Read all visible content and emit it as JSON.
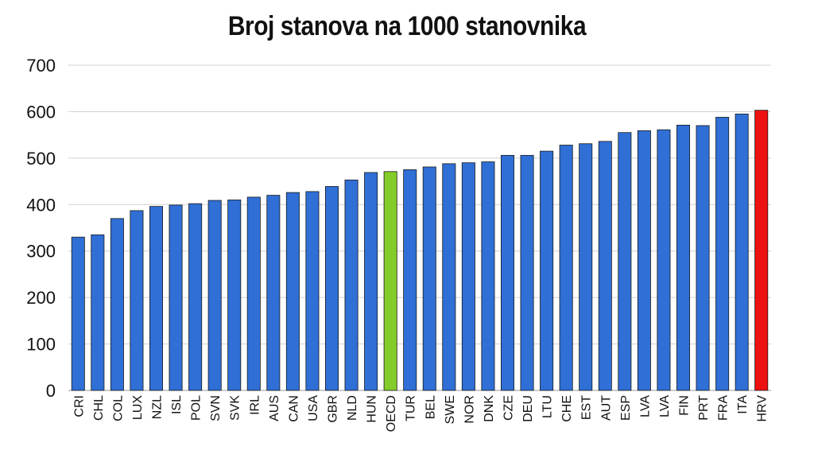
{
  "chart_data": {
    "type": "bar",
    "title": "Broj stanova na 1000 stanovnika",
    "xlabel": "",
    "ylabel": "",
    "ylim": [
      0,
      700
    ],
    "yticks": [
      0,
      100,
      200,
      300,
      400,
      500,
      600,
      700
    ],
    "grid": true,
    "legend": "none",
    "categories": [
      "CRI",
      "CHL",
      "COL",
      "LUX",
      "NZL",
      "ISL",
      "POL",
      "SVN",
      "SVK",
      "IRL",
      "AUS",
      "CAN",
      "USA",
      "GBR",
      "NLD",
      "HUN",
      "OECD",
      "TUR",
      "BEL",
      "SWE",
      "NOR",
      "DNK",
      "CZE",
      "DEU",
      "LTU",
      "CHE",
      "EST",
      "AUT",
      "ESP",
      "LVA",
      "LVA",
      "FIN",
      "PRT",
      "FRA",
      "ITA",
      "HRV"
    ],
    "values": [
      330,
      335,
      370,
      387,
      396,
      399,
      402,
      409,
      410,
      416,
      420,
      426,
      428,
      439,
      453,
      469,
      471,
      475,
      481,
      488,
      490,
      492,
      506,
      506,
      515,
      528,
      531,
      536,
      555,
      559,
      561,
      571,
      570,
      588,
      595,
      603
    ],
    "colors": {
      "default": "#2f6fd6",
      "highlight_oecd": "#84cc29",
      "highlight_hrv": "#ee1111",
      "grid": "#d0d0d0"
    },
    "highlights": {
      "OECD": "#84cc29",
      "HRV": "#ee1111"
    }
  }
}
